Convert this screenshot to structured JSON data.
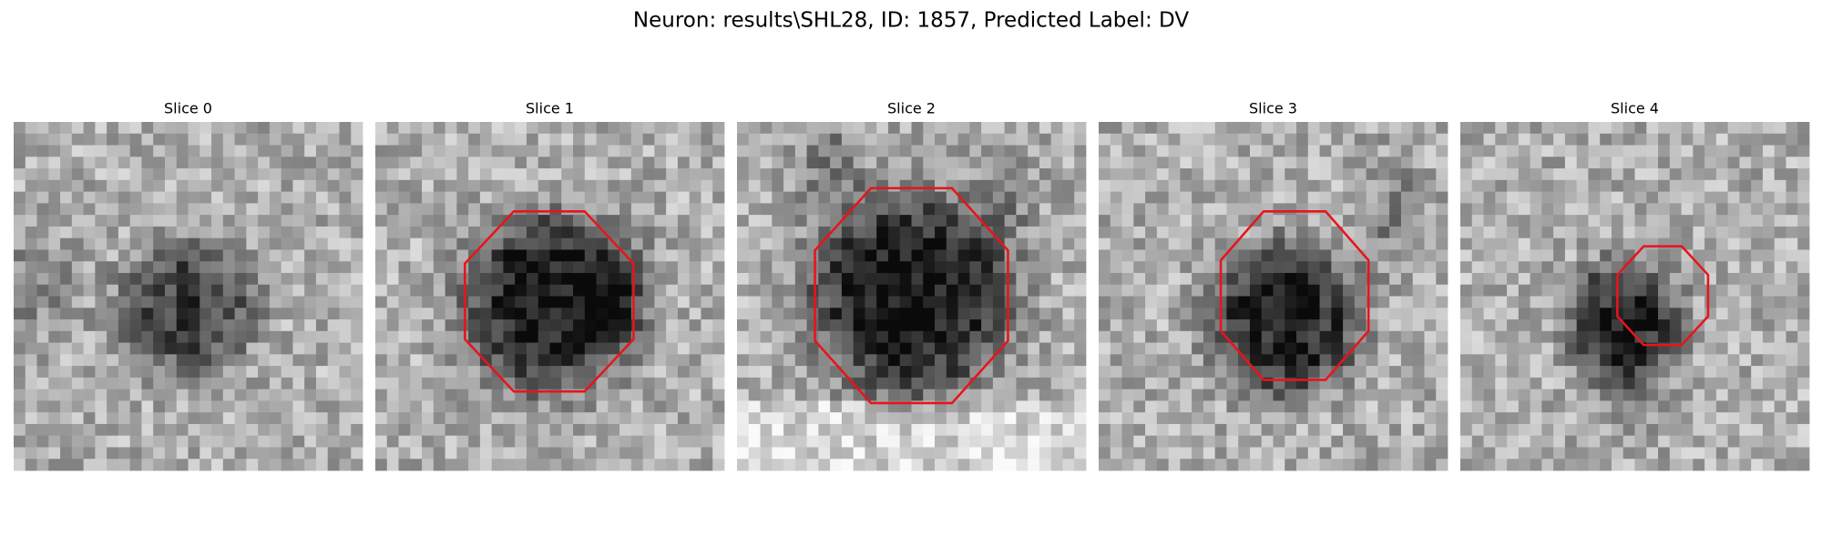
{
  "header": {
    "title": "Neuron: results\\SHL28, ID: 1857, Predicted Label: DV"
  },
  "panels": [
    {
      "title": "Slice 0"
    },
    {
      "title": "Slice 1"
    },
    {
      "title": "Slice 2"
    },
    {
      "title": "Slice 3"
    },
    {
      "title": "Slice 4"
    }
  ]
}
